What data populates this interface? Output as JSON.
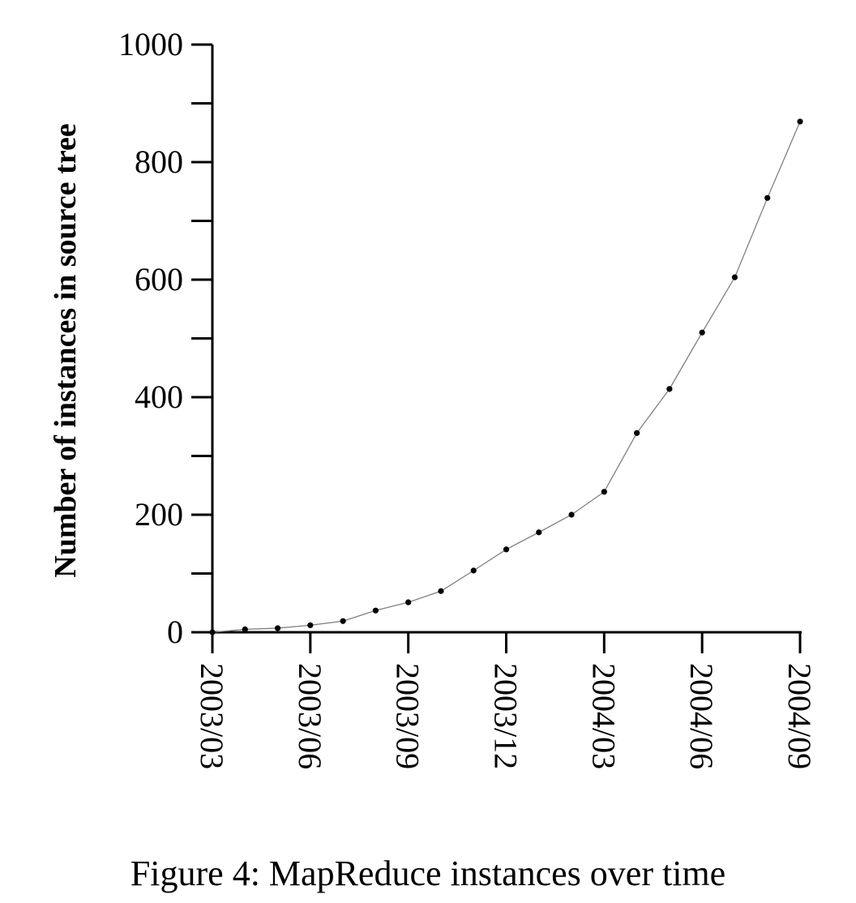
{
  "chart_data": {
    "type": "line",
    "title": "",
    "xlabel": "",
    "ylabel": "Number of instances in source tree",
    "ylim": [
      0,
      1000
    ],
    "yticks": [
      0,
      200,
      400,
      600,
      800,
      1000
    ],
    "xtick_labels": [
      "2003/03",
      "2003/06",
      "2003/09",
      "2003/12",
      "2004/03",
      "2004/06",
      "2004/09"
    ],
    "x_months_from_start": [
      0,
      1,
      2,
      3,
      4,
      5,
      6,
      7,
      8,
      9,
      10,
      11,
      12,
      13,
      14,
      15,
      16,
      17,
      18
    ],
    "series": [
      {
        "name": "MapReduce instances",
        "values": [
          0,
          5,
          7,
          12,
          19,
          37,
          51,
          70,
          105,
          141,
          170,
          200,
          239,
          339,
          414,
          510,
          604,
          739,
          869
        ]
      }
    ],
    "grid": false,
    "legend": "none",
    "colors": {
      "line": "#808080",
      "marker": "#000000",
      "axis": "#000000"
    }
  },
  "caption": "Figure 4: MapReduce instances over time"
}
